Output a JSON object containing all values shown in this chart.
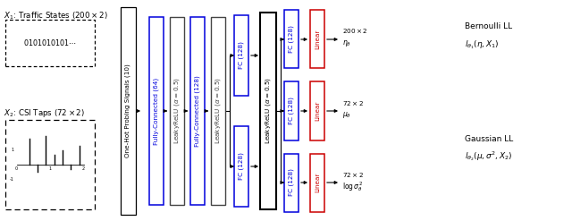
{
  "bg_color": "#ffffff",
  "fig_w": 6.4,
  "fig_h": 2.47,
  "dpi": 100,
  "x1_label": "$X_1$: Traffic States $(200 \\times 2)$",
  "x2_label": "$X_2$: CSI Taps $(72 \\times 2)$",
  "x1_text": "$0101010101\\cdots$",
  "vbox_label": "One-Hot Probing Signals (10)",
  "block_blue_color": "#0000dd",
  "block_gray_color": "#444444",
  "block_red_color": "#cc0000",
  "block_black_color": "#000000",
  "bernoulli_label": "Bernoulli LL",
  "bernoulli_eq": "$l_{\\theta_1}(\\eta, X_1)$",
  "gaussian_label": "Gaussian LL",
  "gaussian_eq": "$l_{\\theta_2}(\\mu, \\sigma^2, X_2)$",
  "out1_dim": "$200 \\times 2$",
  "out1_var": "$\\eta_\\theta$",
  "out2_dim": "$72 \\times 2$",
  "out2_var": "$\\mu_\\theta$",
  "out3_dim": "$72 \\times 2$",
  "out3_var": "$\\log \\sigma^2_\\theta$"
}
